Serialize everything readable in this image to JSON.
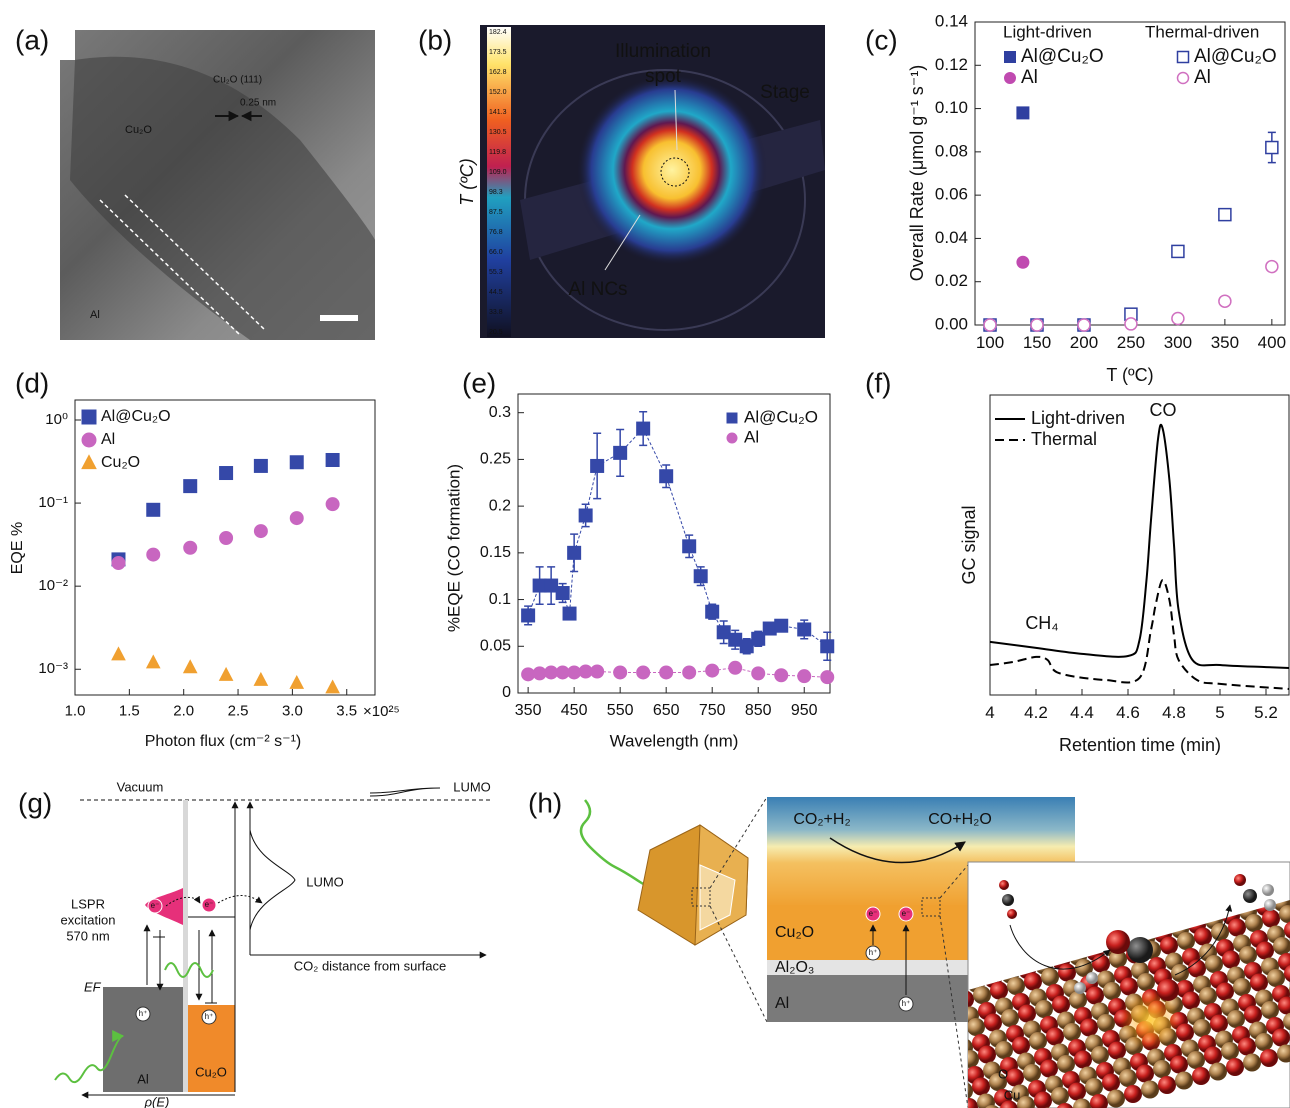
{
  "panel_labels": [
    "(a)",
    "(b)",
    "(c)",
    "(d)",
    "(e)",
    "(f)",
    "(g)",
    "(h)"
  ],
  "panel_a": {
    "labels": [
      "Cu₂O (111)",
      "0.25 nm",
      "Cu₂O",
      "Al"
    ]
  },
  "panel_b": {
    "colorbar_ticks": [
      "182.4",
      "173.5",
      "162.8",
      "152.0",
      "141.3",
      "130.5",
      "119.8",
      "109.0",
      "98.3",
      "87.5",
      "76.8",
      "66.0",
      "55.3",
      "44.5",
      "33.8",
      "20.5"
    ],
    "axis_label": "T (ºC)",
    "spot": [
      "Illumination",
      "spot"
    ],
    "stage": "Stage",
    "ncs": "Al NCs"
  },
  "chart_data": [
    {
      "type": "scatter",
      "xlabel": "T (ºC)",
      "ylabel": "Overall Rate (μmol g⁻¹ s⁻¹)",
      "xlim": [
        84,
        414
      ],
      "ylim": [
        0,
        0.14
      ],
      "xticks": [
        100,
        150,
        200,
        250,
        300,
        350,
        400
      ],
      "yticks": [
        {
          "value": 0,
          "label": "0.00"
        },
        0.02,
        0.04,
        0.06,
        0.08,
        {
          "value": 0.1,
          "label": "0.10"
        },
        0.12,
        0.14
      ],
      "legend": "top",
      "legend_titles": [
        "Light-driven",
        "Thermal-driven"
      ],
      "series": [
        {
          "name": "Al@Cu₂O",
          "color": "#2f3fa0",
          "marker": "square",
          "filled": true,
          "x": [
            135
          ],
          "values": [
            0.098
          ]
        },
        {
          "name": "Al",
          "color": "#c04ab0",
          "marker": "circle",
          "filled": true,
          "x": [
            135
          ],
          "values": [
            0.029
          ]
        },
        {
          "name": "Al@Cu₂O",
          "color": "#2f3fa0",
          "marker": "square",
          "filled": false,
          "x": [
            100,
            150,
            200,
            250,
            300,
            350,
            400
          ],
          "values": [
            0,
            0,
            0,
            0.005,
            0.034,
            0.051,
            0.082
          ],
          "errors": [
            null,
            null,
            null,
            null,
            null,
            0.002,
            0.007
          ]
        },
        {
          "name": "Al",
          "color": "#d070c0",
          "marker": "circle",
          "filled": false,
          "x": [
            100,
            150,
            200,
            250,
            300,
            350,
            400
          ],
          "values": [
            0,
            0,
            0,
            0.0005,
            0.003,
            0.011,
            0.027
          ]
        }
      ]
    },
    {
      "type": "scatter",
      "xlabel": "Photon flux (cm⁻² s⁻¹)",
      "ylabel": "EQE %",
      "x_multiplier": "×10²⁵",
      "log_y": true,
      "xlim": [
        1.0,
        3.76
      ],
      "ylim": [
        0.00049,
        1.74
      ],
      "xticks": [
        {
          "value": 1,
          "label": "1.0"
        },
        1.5,
        {
          "value": 2,
          "label": "2.0"
        },
        2.5,
        {
          "value": 3,
          "label": "3.0"
        },
        3.5
      ],
      "yticks": [
        {
          "value": 1,
          "label": "10⁰"
        },
        {
          "value": 0.1,
          "label": "10⁻¹"
        },
        {
          "value": 0.01,
          "label": "10⁻²"
        },
        {
          "value": 0.001,
          "label": "10⁻³"
        }
      ],
      "legend": "upper left",
      "series": [
        {
          "name": "Al@Cu₂O",
          "color": "#3548a8",
          "marker": "square",
          "filled": true,
          "x": [
            1.4,
            1.72,
            2.06,
            2.39,
            2.71,
            3.04,
            3.37
          ],
          "values": [
            0.021,
            0.083,
            0.16,
            0.23,
            0.28,
            0.31,
            0.33
          ]
        },
        {
          "name": "Al",
          "color": "#c866c0",
          "marker": "circle",
          "filled": true,
          "x": [
            1.4,
            1.72,
            2.06,
            2.39,
            2.71,
            3.04,
            3.37
          ],
          "values": [
            0.019,
            0.024,
            0.029,
            0.038,
            0.046,
            0.066,
            0.097
          ]
        },
        {
          "name": "Cu₂O",
          "color": "#f0a030",
          "marker": "triangle",
          "filled": true,
          "x": [
            1.4,
            1.72,
            2.06,
            2.39,
            2.71,
            3.04,
            3.37
          ],
          "values": [
            0.0015,
            0.0012,
            0.00105,
            0.00085,
            0.00074,
            0.00068,
            0.0006
          ]
        }
      ]
    },
    {
      "type": "scatter",
      "connect": "dashed",
      "xlabel": "Wavelength (nm)",
      "ylabel": "%EQE (CO formation)",
      "xlim": [
        328,
        1006
      ],
      "ylim": [
        0,
        0.32
      ],
      "xticks": [
        350,
        450,
        550,
        650,
        750,
        850,
        950
      ],
      "yticks": [
        0,
        0.05,
        0.1,
        0.15,
        0.2,
        0.25,
        0.3
      ],
      "legend": "upper right",
      "series": [
        {
          "name": "Al@Cu₂O",
          "color": "#3548a8",
          "marker": "square",
          "filled": true,
          "x": [
            350,
            375,
            400,
            425,
            440,
            450,
            475,
            500,
            550,
            600,
            650,
            700,
            725,
            750,
            775,
            800,
            825,
            850,
            875,
            900,
            950,
            1000
          ],
          "values": [
            0.083,
            0.115,
            0.115,
            0.107,
            0.085,
            0.15,
            0.19,
            0.243,
            0.257,
            0.283,
            0.232,
            0.157,
            0.125,
            0.087,
            0.065,
            0.057,
            0.05,
            0.058,
            0.069,
            0.072,
            0.068,
            0.05
          ],
          "errors": [
            0.01,
            0.02,
            0.02,
            0.01,
            0.005,
            0.02,
            0.012,
            0.035,
            0.025,
            0.018,
            0.012,
            0.012,
            0.01,
            0.008,
            0.012,
            0.01,
            0.008,
            0.008,
            0.005,
            0.004,
            0.01,
            0.015
          ]
        },
        {
          "name": "Al",
          "color": "#c866c0",
          "marker": "circle",
          "filled": true,
          "x": [
            350,
            375,
            400,
            425,
            450,
            475,
            500,
            550,
            600,
            650,
            700,
            750,
            800,
            850,
            900,
            950,
            1000
          ],
          "values": [
            0.02,
            0.021,
            0.022,
            0.022,
            0.022,
            0.023,
            0.023,
            0.022,
            0.022,
            0.022,
            0.022,
            0.024,
            0.027,
            0.021,
            0.019,
            0.018,
            0.017
          ]
        }
      ]
    },
    {
      "type": "line",
      "xlabel": "Retention time (min)",
      "ylabel": "GC signal",
      "xlim": [
        4,
        5.3
      ],
      "ylim": [
        0,
        1
      ],
      "xticks": [
        4,
        4.2,
        4.4,
        4.6,
        4.8,
        5,
        5.2
      ],
      "legend": "upper left",
      "annotations": [
        "CO",
        "CH₄"
      ],
      "series": [
        {
          "name": "Light-driven",
          "color": "#000000",
          "line_style": "solid",
          "x": [
            4.0,
            4.2,
            4.4,
            4.6,
            4.65,
            4.68,
            4.7,
            4.73,
            4.75,
            4.78,
            4.8,
            4.82,
            4.88,
            5.0,
            5.2,
            5.3
          ],
          "values": [
            0.177,
            0.157,
            0.137,
            0.13,
            0.183,
            0.38,
            0.583,
            0.85,
            0.89,
            0.717,
            0.5,
            0.283,
            0.117,
            0.1,
            0.093,
            0.09
          ]
        },
        {
          "name": "Thermal",
          "color": "#000000",
          "line_style": "dashed",
          "x": [
            4.0,
            4.1,
            4.2,
            4.25,
            4.3,
            4.5,
            4.65,
            4.7,
            4.72,
            4.75,
            4.78,
            4.8,
            4.82,
            4.9,
            5.0,
            5.3
          ],
          "values": [
            0.1,
            0.11,
            0.127,
            0.117,
            0.073,
            0.05,
            0.057,
            0.217,
            0.3,
            0.383,
            0.317,
            0.2,
            0.117,
            0.05,
            0.037,
            0.02
          ]
        }
      ]
    }
  ],
  "panel_g": {
    "vacuum": "Vacuum",
    "lumo_top": "LUMO",
    "lspr": [
      "LSPR",
      "excitation",
      "570 nm"
    ],
    "lumo": "LUMO",
    "distance": "CO₂ distance from surface",
    "ef": "EF",
    "al": "Al",
    "cu2o": "Cu₂O",
    "dos": "ρ(E)",
    "electrons": [
      "e⁻",
      "e⁻"
    ],
    "holes": [
      "h⁺",
      "h⁺"
    ]
  },
  "panel_h": {
    "reactants": "CO₂+H₂",
    "products": "CO+H₂O",
    "cu2o": "Cu₂O",
    "al2o3": "Al₂O₃",
    "al": "Al",
    "electrons": [
      "e⁻",
      "e⁻"
    ],
    "holes": [
      "h⁺",
      "h⁺"
    ],
    "o": "O",
    "cu": "Cu"
  }
}
